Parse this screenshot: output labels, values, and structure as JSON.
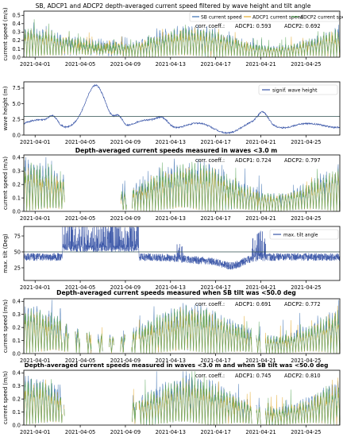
{
  "chart_data": [
    {
      "type": "line",
      "title": "SB, ADCP1 and ADCP2 depth-averaged current speed filtered by wave height and tilt angle",
      "ylabel": "current speed (m/s)",
      "ylim": [
        0,
        0.55
      ],
      "yticks": [
        0.0,
        0.1,
        0.2,
        0.3,
        0.4,
        0.5
      ],
      "xticks": [
        "2021-04-01",
        "2021-04-05",
        "2021-04-09",
        "2021-04-13",
        "2021-04-17",
        "2021-04-21",
        "2021-04-25"
      ],
      "legend": [
        "SB current speed",
        "ADCP1 current speed",
        "ADCP2 current speed"
      ],
      "legend_position": "top-right",
      "annotation": {
        "label": "corr. coeff.:",
        "adcp1": "ADCP1: 0.593",
        "adcp2": "ADCP2: 0.692"
      },
      "series": [
        {
          "name": "SB current speed",
          "color": "#3a6fb0",
          "peak": 0.32
        },
        {
          "name": "ADCP1 current speed",
          "color": "#e3a92c",
          "peak": 0.28
        },
        {
          "name": "ADCP2 current speed",
          "color": "#5aa75a",
          "peak": 0.3
        }
      ]
    },
    {
      "type": "line",
      "ylabel": "wave height (m)",
      "ylim": [
        0,
        8.5
      ],
      "yticks": [
        0.0,
        2.5,
        5.0,
        7.5
      ],
      "xticks": [
        "2021-04-01",
        "2021-04-05",
        "2021-04-09",
        "2021-04-13",
        "2021-04-17",
        "2021-04-21",
        "2021-04-25"
      ],
      "legend": [
        "signif. wave height"
      ],
      "legend_position": "top-right",
      "threshold": 3.0,
      "series": [
        {
          "name": "signif. wave height",
          "color": "#3a56a8"
        }
      ]
    },
    {
      "type": "line",
      "title": "Depth-averaged current speeds measured in waves <3.0 m",
      "ylabel": "current speed (m/s)",
      "ylim": [
        0,
        0.42
      ],
      "yticks": [
        0.0,
        0.1,
        0.2,
        0.3,
        0.4
      ],
      "xticks": [
        "2021-04-01",
        "2021-04-05",
        "2021-04-09",
        "2021-04-13",
        "2021-04-17",
        "2021-04-21",
        "2021-04-25"
      ],
      "annotation": {
        "label": "corr. coeff.:",
        "adcp1": "ADCP1: 0.724",
        "adcp2": "ADCP2: 0.797"
      }
    },
    {
      "type": "line",
      "ylabel": "max. tilt (Deg)",
      "ylim": [
        5,
        90
      ],
      "yticks": [
        25,
        50,
        75
      ],
      "xticks": [
        "2021-04-01",
        "2021-04-05",
        "2021-04-09",
        "2021-04-13",
        "2021-04-17",
        "2021-04-21",
        "2021-04-25"
      ],
      "legend": [
        "max. tilt angle"
      ],
      "legend_position": "top-right",
      "threshold": 50,
      "series": [
        {
          "name": "max. tilt angle",
          "color": "#3a56a8"
        }
      ]
    },
    {
      "type": "line",
      "title": "Depth-averaged current speeds measured when SB tilt was <50.0 deg",
      "ylabel": "current speed (m/s)",
      "ylim": [
        0,
        0.42
      ],
      "yticks": [
        0.0,
        0.1,
        0.2,
        0.3,
        0.4
      ],
      "xticks": [
        "2021-04-01",
        "2021-04-05",
        "2021-04-09",
        "2021-04-13",
        "2021-04-17",
        "2021-04-21",
        "2021-04-25"
      ],
      "annotation": {
        "label": "corr. coeff.:",
        "adcp1": "ADCP1: 0.691",
        "adcp2": "ADCP2: 0.772"
      }
    },
    {
      "type": "line",
      "title": "Depth-averaged current speeds measured in waves <3.0 m and when SB tilt was <50.0 deg",
      "ylabel": "current speed (m/s)",
      "ylim": [
        0,
        0.42
      ],
      "yticks": [
        0.0,
        0.1,
        0.2,
        0.3,
        0.4
      ],
      "xticks": [
        "2021-04-01",
        "2021-04-05",
        "2021-04-09",
        "2021-04-13",
        "2021-04-17",
        "2021-04-21",
        "2021-04-25"
      ],
      "annotation": {
        "label": "corr. coeff.:",
        "adcp1": "ADCP1: 0.745",
        "adcp2": "ADCP2: 0.810"
      }
    }
  ],
  "colors": {
    "sb": "#3a6fb0",
    "adcp1": "#e3a92c",
    "adcp2": "#5aa75a",
    "wave": "#3a56a8",
    "threshold": "#2f4f4f"
  }
}
